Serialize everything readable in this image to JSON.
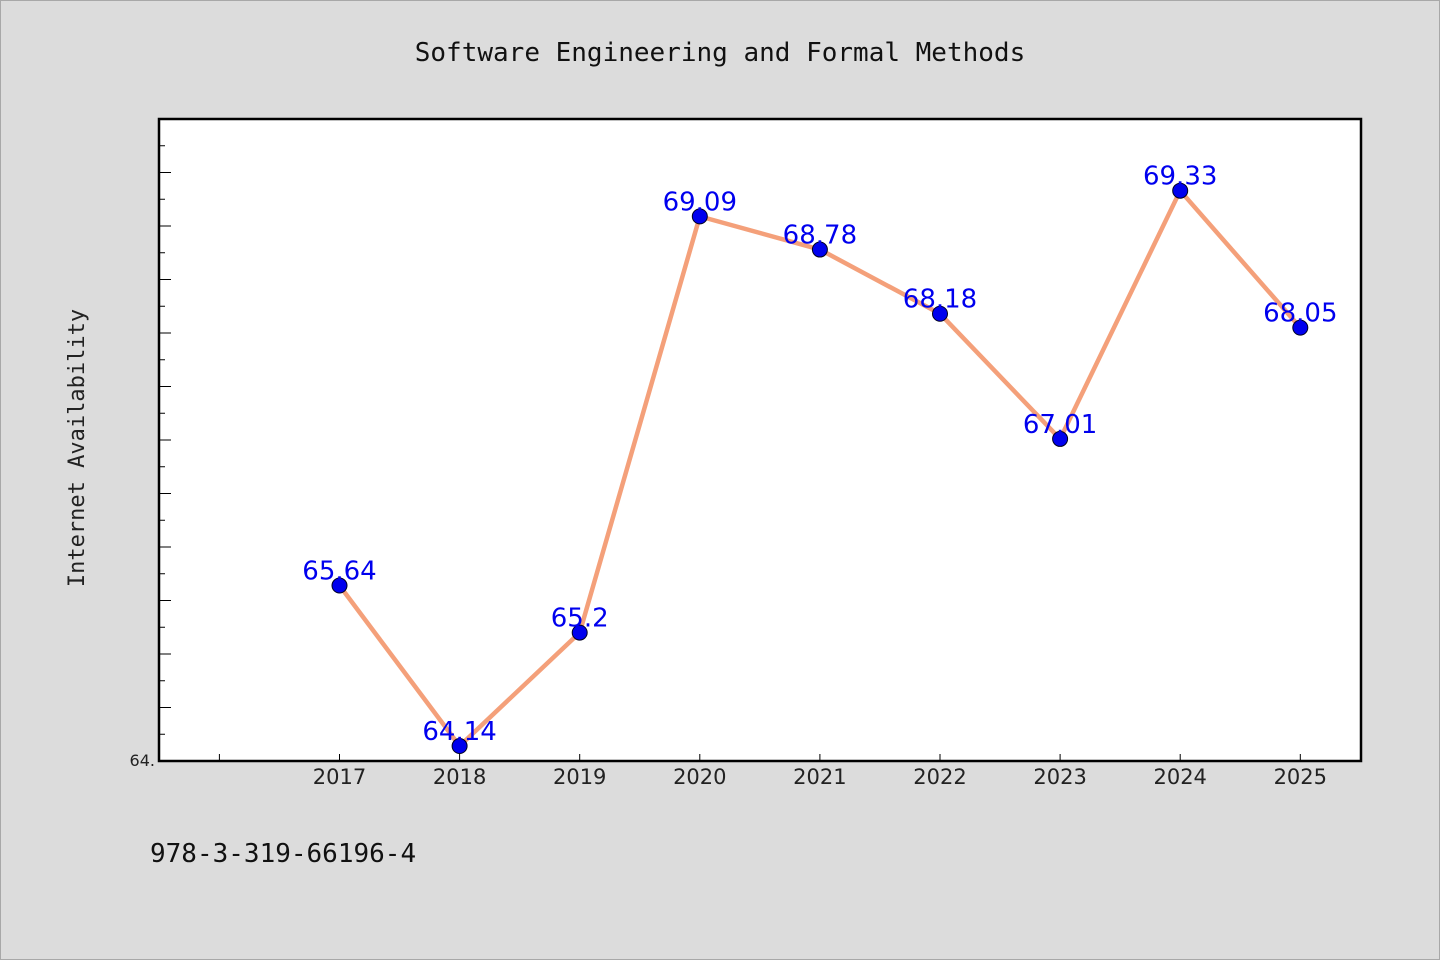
{
  "chart_data": {
    "type": "line",
    "title": "Software Engineering and Formal Methods",
    "xlabel": "",
    "ylabel": "Internet Availability",
    "categories": [
      "2017",
      "2018",
      "2019",
      "2020",
      "2021",
      "2022",
      "2023",
      "2024",
      "2025"
    ],
    "series": [
      {
        "values": [
          65.64,
          64.14,
          65.2,
          69.09,
          68.78,
          68.18,
          67.01,
          69.33,
          68.05
        ],
        "labels": [
          "65.64",
          "64.14",
          "65.2",
          "69.09",
          "68.78",
          "68.18",
          "67.01",
          "69.33",
          "68.05"
        ]
      }
    ],
    "ylim": [
      64.0,
      70.0
    ],
    "y_min_tick_label": "64.",
    "grid": false,
    "line_color": "#f4a07a",
    "marker_color": "#0000ee",
    "label_color": "#0000ee",
    "plot_background": "#ffffff",
    "figure_background": "#dcdcdc"
  },
  "footer": {
    "text": "978-3-319-66196-4"
  }
}
